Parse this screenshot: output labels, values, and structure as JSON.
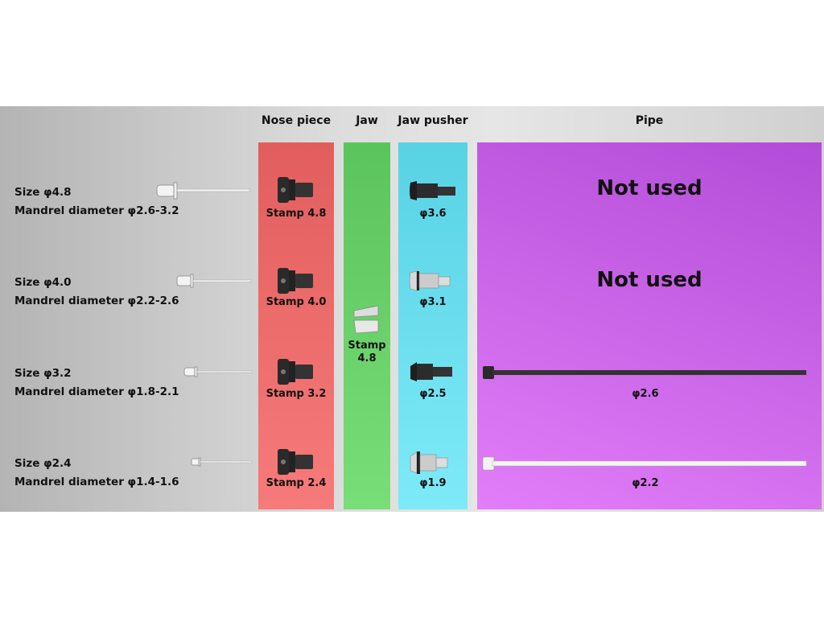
{
  "headers": {
    "nose": "Nose piece",
    "jaw": "Jaw",
    "pusher": "Jaw pusher",
    "pipe": "Pipe"
  },
  "rows": [
    {
      "size": "Size φ4.8",
      "mandrel": "Mandrel diameter φ2.6-3.2",
      "nose": "Stamp 4.8",
      "pusher": "φ3.6",
      "pipe": "Not used"
    },
    {
      "size": "Size φ4.0",
      "mandrel": "Mandrel diameter φ2.2-2.6",
      "nose": "Stamp 4.0",
      "pusher": "φ3.1",
      "pipe": "Not used"
    },
    {
      "size": "Size φ3.2",
      "mandrel": "Mandrel diameter φ1.8-2.1",
      "nose": "Stamp 3.2",
      "pusher": "φ2.5",
      "pipe": "φ2.6"
    },
    {
      "size": "Size φ2.4",
      "mandrel": "Mandrel diameter φ1.4-1.6",
      "nose": "Stamp 2.4",
      "pusher": "φ1.9",
      "pipe": "φ2.2"
    }
  ],
  "jaw": {
    "line1": "Stamp",
    "line2": "4.8"
  }
}
